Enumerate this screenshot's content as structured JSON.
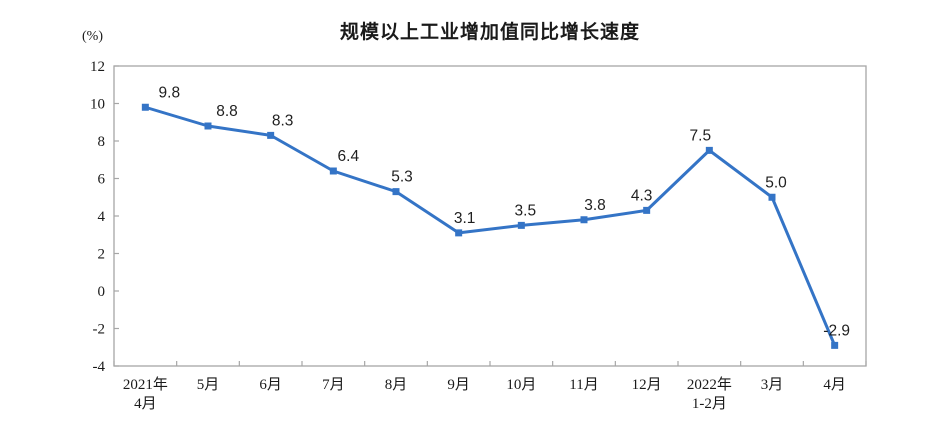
{
  "chart_data": {
    "type": "line",
    "title": "规模以上工业增加值同比增长速度",
    "ylabel": "(%)",
    "xlabel": "",
    "categories": [
      [
        "2021年",
        "4月"
      ],
      [
        "5月"
      ],
      [
        "6月"
      ],
      [
        "7月"
      ],
      [
        "8月"
      ],
      [
        "9月"
      ],
      [
        "10月"
      ],
      [
        "11月"
      ],
      [
        "12月"
      ],
      [
        "2022年",
        "1-2月"
      ],
      [
        "3月"
      ],
      [
        "4月"
      ]
    ],
    "values": [
      9.8,
      8.8,
      8.3,
      6.4,
      5.3,
      3.1,
      3.5,
      3.8,
      4.3,
      7.5,
      5.0,
      -2.9
    ],
    "data_labels": [
      "9.8",
      "8.8",
      "8.3",
      "6.4",
      "5.3",
      "3.1",
      "3.5",
      "3.8",
      "4.3",
      "7.5",
      "5.0",
      "-2.9"
    ],
    "ylim": [
      -4,
      12
    ],
    "ytick_step": 2,
    "y_tick_labels": [
      "12",
      "10",
      "8",
      "6",
      "4",
      "2",
      "0",
      "-2",
      "-4"
    ],
    "grid": false,
    "legend": "none",
    "marker": "square",
    "colors": {
      "line_color": "#3474C6",
      "marker_color": "#3474C6",
      "axis_color": "#A6A6A6",
      "text_color": "#1a1a1a",
      "background": "#ffffff"
    }
  }
}
